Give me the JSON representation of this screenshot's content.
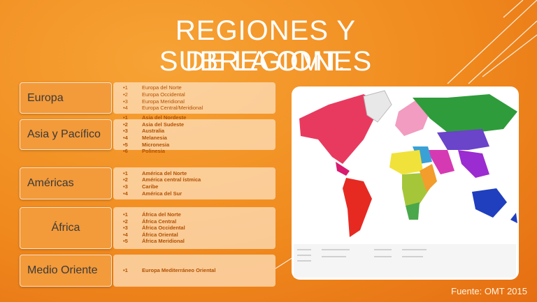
{
  "title": [
    "REGIONES Y SUBREGIONES",
    "DE LA OMT."
  ],
  "regions": [
    {
      "name": "Europa",
      "items": [
        {
          "number": "1",
          "name": "Europa del Norte"
        },
        {
          "number": "2",
          "name": "Europa Occidental"
        },
        {
          "number": "3",
          "name": "Europa Meridional"
        },
        {
          "number": "4",
          "name": "Europa Central/Meridional"
        }
      ]
    },
    {
      "name": "Asia y Pacífico",
      "items": [
        {
          "number": "1",
          "name": "Asia del Nordeste"
        },
        {
          "number": "2",
          "name": "Asia del Sudeste"
        },
        {
          "number": "3",
          "name": "Australia"
        },
        {
          "number": "4",
          "name": "Melanesia"
        },
        {
          "number": "5",
          "name": "Micronesia"
        },
        {
          "number": "6",
          "name": "Polinesia"
        }
      ]
    },
    {
      "name": "Américas",
      "items": [
        {
          "number": "1",
          "name": "América del Norte"
        },
        {
          "number": "2",
          "name": "América central ístmica"
        },
        {
          "number": "3",
          "name": "Caribe"
        },
        {
          "number": "4",
          "name": "América del Sur"
        }
      ]
    },
    {
      "name": "África",
      "items": [
        {
          "number": "1",
          "name": "África del Norte"
        },
        {
          "number": "2",
          "name": "África Central"
        },
        {
          "number": "3",
          "name": "África Occidental"
        },
        {
          "number": "4",
          "name": "África Oriental"
        },
        {
          "number": "5",
          "name": "África Meridional"
        }
      ]
    },
    {
      "name": "Medio Oriente",
      "items": [
        {
          "number": "1",
          "name": "Europa Mediterráneo Oriental"
        }
      ]
    }
  ],
  "source": "Fuente: OMT 2015"
}
